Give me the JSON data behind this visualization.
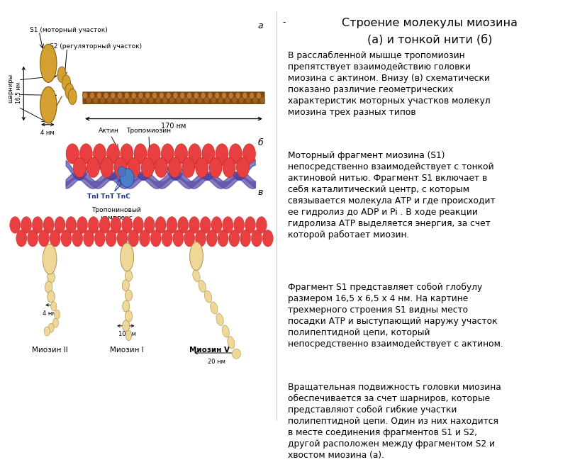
{
  "bg_color": "#ffffff",
  "title1": "Строение молекулы миозина",
  "title2": "(а) и тонкой нити (б)",
  "label_a": "а",
  "label_b": "б",
  "label_v": "в",
  "label_s1": "S1 (моторный участок)",
  "label_s2": "S2 (регуляторный участок)",
  "label_sharniry": "шарниры",
  "label_170nm": "170 нм",
  "label_165nm": "16,5 нм",
  "label_4nm_top": "4 нм",
  "label_aktin": "Актин",
  "label_tropomiosin": "Тропомиозин",
  "label_TnI_TnT_TnC": "TnI TnT TnC",
  "label_troponin": "Тропониновый\nкомплекс",
  "label_4nm_bot": "4 нм",
  "label_10nm": "10 нм",
  "label_20nm": "20 нм",
  "label_myosin2": "Миозин II",
  "label_myosin1": "Миозин I",
  "label_myosin5": "Миозин V",
  "head_color": "#D4A030",
  "tail_color": "#7A4A10",
  "actin_color": "#E84040",
  "tropomyosin_color1": "#5050A0",
  "tropomyosin_color2": "#8060C0",
  "troponin_color": "#4A80C8",
  "myosin_head_color": "#EED898",
  "right_paragraphs": [
    "В расслабленной мышце тропомиозин препятствует взаимодействию головки миозина с актином. Внизу (в) схематически показано различие геометрических характеристик моторных участков молекул миозина трех разных типов",
    "Моторный фрагмент миозина (S1) непосредственно взаимодействует с тонкой актиновой нитью. Фрагмент S1 включает в себя каталитический центр, с которым связывается молекула АТР и где происходит ее гидролиз до ADP и Pi . В ходе реакции гидролиза АТР выделяется энергия, за счет которой работает миозин.",
    "Фрагмент S1 представляет собой глобулу размером 16,5 х 6,5 х 4 нм. На картине трехмерного строения S1 видны место посадки АТР и выступающий наружу участок полипептидной цепи, который непосредственно взаимодействует с актином.",
    "Вращательная подвижность головки миозина обеспечивается за счет шарниров, которые представляют собой гибкие участки полипептидной цепи. Один из них находится в месте соединения фрагментов S1 и S2, другой расположен между фрагментом S2 и хвостом миозина (а)."
  ]
}
